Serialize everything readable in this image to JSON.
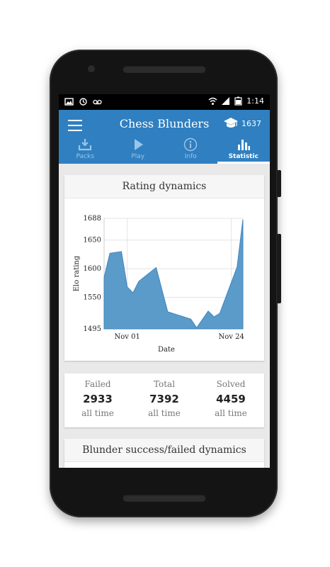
{
  "status_bar": {
    "time": "1:14"
  },
  "app_bar": {
    "title": "Chess Blunders",
    "rating": "1637"
  },
  "tabs": [
    {
      "label": "Packs",
      "icon": "download-icon",
      "active": false
    },
    {
      "label": "Play",
      "icon": "play-icon",
      "active": false
    },
    {
      "label": "Info",
      "icon": "info-icon",
      "active": false
    },
    {
      "label": "Statistic",
      "icon": "bar-chart-icon",
      "active": true
    }
  ],
  "rating_card": {
    "title": "Rating dynamics"
  },
  "chart_data": {
    "type": "area",
    "xlabel": "Date",
    "ylabel": "Elo rating",
    "ylim": [
      1495,
      1688
    ],
    "yticks": [
      1495,
      1550,
      1600,
      1650,
      1688
    ],
    "xtick_labels": [
      "Nov 01",
      "Nov 24"
    ],
    "x": [
      0,
      1,
      3,
      4,
      5,
      6,
      9,
      11,
      15,
      16,
      18,
      19,
      20,
      23,
      24
    ],
    "values": [
      1585,
      1627,
      1630,
      1568,
      1558,
      1578,
      1602,
      1525,
      1512,
      1497,
      1526,
      1516,
      1522,
      1603,
      1686
    ],
    "color": "#5b9bc9",
    "grid": true
  },
  "stats": [
    {
      "label": "Failed",
      "value": "2933",
      "sub": "all time"
    },
    {
      "label": "Total",
      "value": "7392",
      "sub": "all time"
    },
    {
      "label": "Solved",
      "value": "4459",
      "sub": "all time"
    }
  ],
  "dynamics_card": {
    "title": "Blunder success/failed dynamics"
  }
}
